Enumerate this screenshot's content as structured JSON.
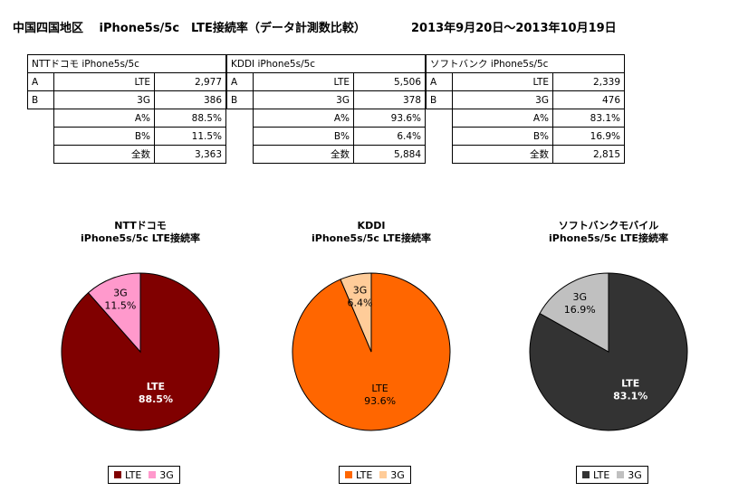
{
  "header": {
    "title": "中国四国地区　 iPhone5s/5c　LTE接続率（データ計測数比較）",
    "period": "2013年9月20日～2013年10月19日"
  },
  "tables": [
    {
      "header": "NTTドコモ iPhone5s/5c",
      "rows": [
        {
          "rl": "A",
          "label": "LTE",
          "value": "2,977"
        },
        {
          "rl": "B",
          "label": "3G",
          "value": "386"
        },
        {
          "rl": "",
          "label": "A%",
          "value": "88.5%"
        },
        {
          "rl": "",
          "label": "B%",
          "value": "11.5%"
        },
        {
          "rl": "",
          "label": "全数",
          "value": "3,363"
        }
      ]
    },
    {
      "header": "KDDI iPhone5s/5c",
      "rows": [
        {
          "rl": "A",
          "label": "LTE",
          "value": "5,506"
        },
        {
          "rl": "B",
          "label": "3G",
          "value": "378"
        },
        {
          "rl": "",
          "label": "A%",
          "value": "93.6%"
        },
        {
          "rl": "",
          "label": "B%",
          "value": "6.4%"
        },
        {
          "rl": "",
          "label": "全数",
          "value": "5,884"
        }
      ]
    },
    {
      "header": "ソフトバンク iPhone5s/5c",
      "rows": [
        {
          "rl": "A",
          "label": "LTE",
          "value": "2,339"
        },
        {
          "rl": "B",
          "label": "3G",
          "value": "476"
        },
        {
          "rl": "",
          "label": "A%",
          "value": "83.1%"
        },
        {
          "rl": "",
          "label": "B%",
          "value": "16.9%"
        },
        {
          "rl": "",
          "label": "全数",
          "value": "2,815"
        }
      ]
    }
  ],
  "chart_data": [
    {
      "type": "pie",
      "title": [
        "NTTドコモ",
        "iPhone5s/5c LTE接続率"
      ],
      "slices": [
        {
          "name": "LTE",
          "value": 88.5,
          "label": "88.5%",
          "color": "#800000"
        },
        {
          "name": "3G",
          "value": 11.5,
          "label": "11.5%",
          "color": "#ff99cc"
        }
      ],
      "label_colors": {
        "LTE": "#ffffff",
        "3G": "#000000"
      },
      "legend": [
        "LTE",
        "3G"
      ],
      "legend_placement": "bottom"
    },
    {
      "type": "pie",
      "title": [
        "KDDI",
        "iPhone5s/5c LTE接続率"
      ],
      "slices": [
        {
          "name": "LTE",
          "value": 93.6,
          "label": "93.6%",
          "color": "#ff6600"
        },
        {
          "name": "3G",
          "value": 6.4,
          "label": "6.4%",
          "color": "#ffcc99"
        }
      ],
      "label_colors": {
        "LTE": "#000000",
        "3G": "#000000"
      },
      "legend": [
        "LTE",
        "3G"
      ],
      "legend_placement": "bottom"
    },
    {
      "type": "pie",
      "title": [
        "ソフトバンクモバイル",
        "iPhone5s/5c LTE接続率"
      ],
      "slices": [
        {
          "name": "LTE",
          "value": 83.1,
          "label": "83.1%",
          "color": "#333333"
        },
        {
          "name": "3G",
          "value": 16.9,
          "label": "16.9%",
          "color": "#c0c0c0"
        }
      ],
      "label_colors": {
        "LTE": "#ffffff",
        "3G": "#000000"
      },
      "legend": [
        "LTE",
        "3G"
      ],
      "legend_placement": "bottom"
    }
  ]
}
